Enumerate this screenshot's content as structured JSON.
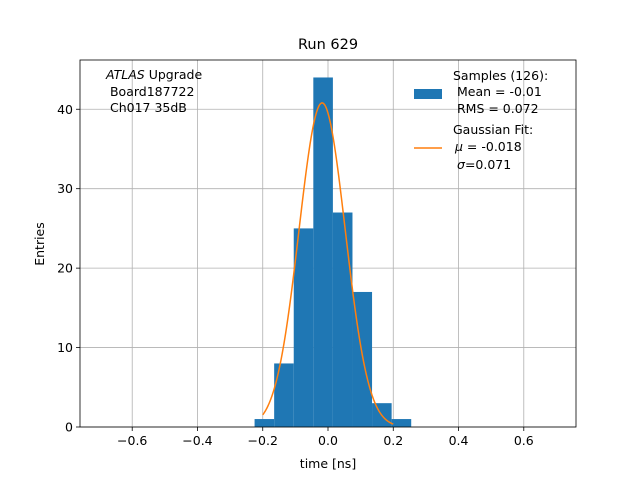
{
  "chart_data": {
    "type": "bar",
    "title": "Run 629",
    "xlabel": "time [ns]",
    "ylabel": "Entries",
    "xlim": [
      -0.76,
      0.76
    ],
    "ylim": [
      0,
      46.2
    ],
    "xticks": [
      -0.6,
      -0.4,
      -0.2,
      0.0,
      0.2,
      0.4,
      0.6
    ],
    "xtick_labels": [
      "−0.6",
      "−0.4",
      "−0.2",
      "0.0",
      "0.2",
      "0.4",
      "0.6"
    ],
    "yticks": [
      0,
      10,
      20,
      30,
      40
    ],
    "ytick_labels": [
      "0",
      "10",
      "20",
      "30",
      "40"
    ],
    "grid": true,
    "legend_position": "top-right",
    "colors": {
      "histogram": "#1f77b4",
      "fit": "#ff7f0e",
      "grid": "#b0b0b0"
    },
    "histogram": {
      "bin_edges": [
        -0.225,
        -0.165,
        -0.105,
        -0.045,
        0.015,
        0.075,
        0.135,
        0.195,
        0.255
      ],
      "counts": [
        1,
        8,
        25,
        44,
        27,
        17,
        3,
        1
      ]
    },
    "fit": {
      "amplitude": 40.8,
      "mu": -0.018,
      "sigma": 0.071,
      "x_range": [
        -0.2,
        0.2
      ]
    },
    "annotation": {
      "line1_italic": "ATLAS",
      "line1_rest": " Upgrade",
      "line2": " Board187722",
      "line3": " Ch017 35dB"
    },
    "legend": {
      "samples": {
        "title": "Samples (126):",
        "line2": " Mean = -0.01",
        "line3": " RMS = 0.072"
      },
      "fit": {
        "title": "Gaussian Fit:",
        "mu_symbol": "μ",
        "mu_value": " = -0.018",
        "sigma_symbol": "σ",
        "sigma_value": "=0.071"
      }
    }
  }
}
